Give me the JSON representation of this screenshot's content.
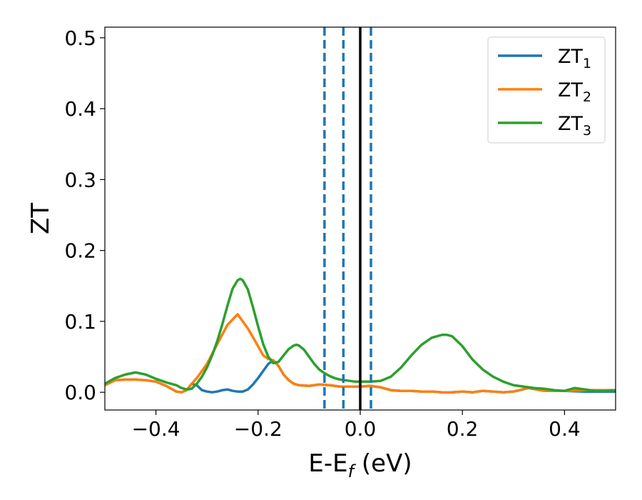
{
  "chart_data": {
    "type": "line",
    "xlabel": "E-E",
    "xlabel_sub": "f",
    "xlabel_unit": " (eV)",
    "ylabel": "ZT",
    "xlim": [
      -0.5,
      0.5
    ],
    "ylim": [
      -0.025,
      0.515
    ],
    "xticks": [
      -0.4,
      -0.2,
      0.0,
      0.2,
      0.4
    ],
    "xtick_labels": [
      "−0.4",
      "−0.2",
      "0.0",
      "0.2",
      "0.4"
    ],
    "yticks": [
      0.0,
      0.1,
      0.2,
      0.3,
      0.4,
      0.5
    ],
    "ytick_labels": [
      "0.0",
      "0.1",
      "0.2",
      "0.3",
      "0.4",
      "0.5"
    ],
    "grid": false,
    "legend_position": "top-right",
    "vlines": [
      {
        "x": -0.07,
        "style": "dashed",
        "color": "#1f77b4"
      },
      {
        "x": -0.033,
        "style": "dashed",
        "color": "#1f77b4"
      },
      {
        "x": 0.0,
        "style": "solid",
        "color": "#000000"
      },
      {
        "x": 0.021,
        "style": "dashed",
        "color": "#1f77b4"
      }
    ],
    "series": [
      {
        "name": "ZT",
        "sub": "1",
        "color": "#1f77b4",
        "x": [
          -0.5,
          -0.48,
          -0.46,
          -0.44,
          -0.42,
          -0.4,
          -0.38,
          -0.36,
          -0.35,
          -0.34,
          -0.33,
          -0.32,
          -0.31,
          -0.3,
          -0.29,
          -0.28,
          -0.27,
          -0.26,
          -0.25,
          -0.24,
          -0.23,
          -0.22,
          -0.21,
          -0.2,
          -0.19,
          -0.18,
          -0.17,
          -0.16,
          -0.15,
          -0.14,
          -0.13,
          -0.12,
          -0.1,
          -0.08,
          -0.06,
          -0.04,
          -0.02,
          0.0,
          0.02,
          0.04,
          0.06,
          0.08,
          0.1,
          0.12,
          0.14,
          0.16,
          0.18,
          0.2,
          0.22,
          0.24,
          0.26,
          0.28,
          0.3,
          0.33,
          0.36,
          0.4,
          0.44,
          0.48,
          0.5
        ],
        "y": [
          0.01,
          0.017,
          0.018,
          0.018,
          0.017,
          0.015,
          0.009,
          0.001,
          0.0,
          0.003,
          0.012,
          0.01,
          0.003,
          0.001,
          0.0,
          0.001,
          0.003,
          0.004,
          0.002,
          0.001,
          0.001,
          0.004,
          0.011,
          0.02,
          0.03,
          0.04,
          0.045,
          0.037,
          0.025,
          0.017,
          0.012,
          0.01,
          0.009,
          0.011,
          0.01,
          0.008,
          0.008,
          0.008,
          0.009,
          0.007,
          0.003,
          0.002,
          0.002,
          0.001,
          0.001,
          0.0,
          0.0,
          0.001,
          0.0,
          0.002,
          0.001,
          0.0,
          0.001,
          0.006,
          0.002,
          0.002,
          0.001,
          0.001,
          0.001
        ]
      },
      {
        "name": "ZT",
        "sub": "2",
        "color": "#ff7f0e",
        "x": [
          -0.5,
          -0.48,
          -0.46,
          -0.44,
          -0.42,
          -0.4,
          -0.38,
          -0.36,
          -0.35,
          -0.34,
          -0.33,
          -0.32,
          -0.3,
          -0.28,
          -0.26,
          -0.24,
          -0.22,
          -0.2,
          -0.19,
          -0.18,
          -0.17,
          -0.16,
          -0.15,
          -0.14,
          -0.13,
          -0.12,
          -0.1,
          -0.08,
          -0.06,
          -0.04,
          -0.02,
          0.0,
          0.02,
          0.04,
          0.06,
          0.08,
          0.1,
          0.12,
          0.14,
          0.16,
          0.18,
          0.2,
          0.22,
          0.24,
          0.26,
          0.28,
          0.3,
          0.33,
          0.36,
          0.4,
          0.44,
          0.48,
          0.5
        ],
        "y": [
          0.01,
          0.017,
          0.018,
          0.018,
          0.017,
          0.015,
          0.009,
          0.001,
          0.0,
          0.003,
          0.012,
          0.02,
          0.04,
          0.068,
          0.095,
          0.11,
          0.09,
          0.065,
          0.052,
          0.047,
          0.045,
          0.037,
          0.025,
          0.017,
          0.012,
          0.01,
          0.009,
          0.011,
          0.01,
          0.008,
          0.008,
          0.008,
          0.009,
          0.007,
          0.003,
          0.002,
          0.002,
          0.001,
          0.001,
          0.0,
          0.0,
          0.001,
          0.0,
          0.002,
          0.001,
          0.0,
          0.001,
          0.006,
          0.002,
          0.002,
          0.003,
          0.003,
          0.003
        ]
      },
      {
        "name": "ZT",
        "sub": "3",
        "color": "#2ca02c",
        "x": [
          -0.5,
          -0.48,
          -0.46,
          -0.44,
          -0.42,
          -0.4,
          -0.38,
          -0.36,
          -0.35,
          -0.34,
          -0.33,
          -0.32,
          -0.31,
          -0.3,
          -0.29,
          -0.28,
          -0.27,
          -0.26,
          -0.25,
          -0.24,
          -0.235,
          -0.23,
          -0.22,
          -0.21,
          -0.2,
          -0.19,
          -0.18,
          -0.17,
          -0.16,
          -0.15,
          -0.14,
          -0.13,
          -0.125,
          -0.12,
          -0.11,
          -0.1,
          -0.09,
          -0.08,
          -0.07,
          -0.06,
          -0.05,
          -0.04,
          -0.03,
          -0.02,
          -0.01,
          0.0,
          0.02,
          0.04,
          0.06,
          0.08,
          0.1,
          0.12,
          0.14,
          0.16,
          0.17,
          0.18,
          0.2,
          0.22,
          0.24,
          0.26,
          0.28,
          0.3,
          0.32,
          0.34,
          0.36,
          0.38,
          0.4,
          0.42,
          0.44,
          0.46,
          0.48,
          0.5
        ],
        "y": [
          0.012,
          0.02,
          0.025,
          0.028,
          0.025,
          0.019,
          0.014,
          0.01,
          0.006,
          0.004,
          0.005,
          0.012,
          0.022,
          0.035,
          0.052,
          0.072,
          0.096,
          0.122,
          0.146,
          0.158,
          0.16,
          0.158,
          0.145,
          0.12,
          0.093,
          0.068,
          0.05,
          0.041,
          0.043,
          0.052,
          0.061,
          0.066,
          0.067,
          0.066,
          0.06,
          0.05,
          0.04,
          0.032,
          0.027,
          0.023,
          0.02,
          0.018,
          0.017,
          0.016,
          0.015,
          0.015,
          0.015,
          0.016,
          0.022,
          0.035,
          0.052,
          0.067,
          0.077,
          0.081,
          0.081,
          0.079,
          0.065,
          0.046,
          0.032,
          0.022,
          0.015,
          0.01,
          0.008,
          0.006,
          0.005,
          0.003,
          0.002,
          0.006,
          0.004,
          0.002,
          0.002,
          0.003
        ]
      }
    ]
  }
}
